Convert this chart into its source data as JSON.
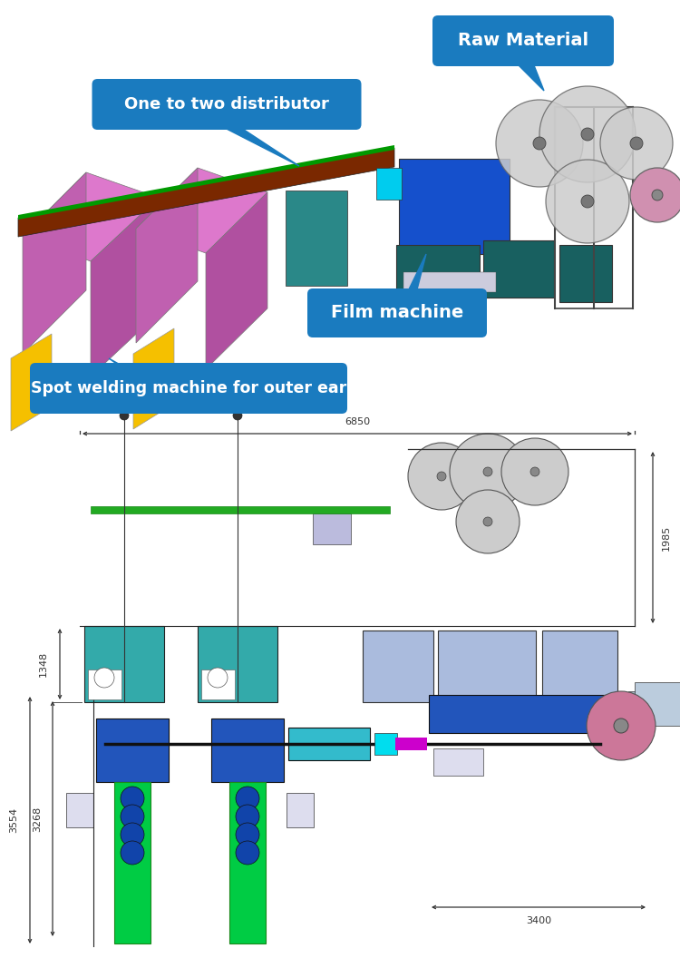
{
  "background_color": "#ffffff",
  "fig_width": 7.5,
  "fig_height": 10.56,
  "dpi": 100,
  "callout_color": "#1a7bbf",
  "callout_text_color": "#ffffff",
  "labels": {
    "raw_material": "Raw Material",
    "distributor": "One to two distributor",
    "film_machine": "Film machine",
    "spot_welding": "Spot welding machine for outer ear"
  },
  "dims": {
    "side_width": "6850",
    "side_height_right": "1985",
    "side_height_left": "1348",
    "top_height_outer": "3554",
    "top_height_inner": "3268",
    "top_width": "3400"
  }
}
